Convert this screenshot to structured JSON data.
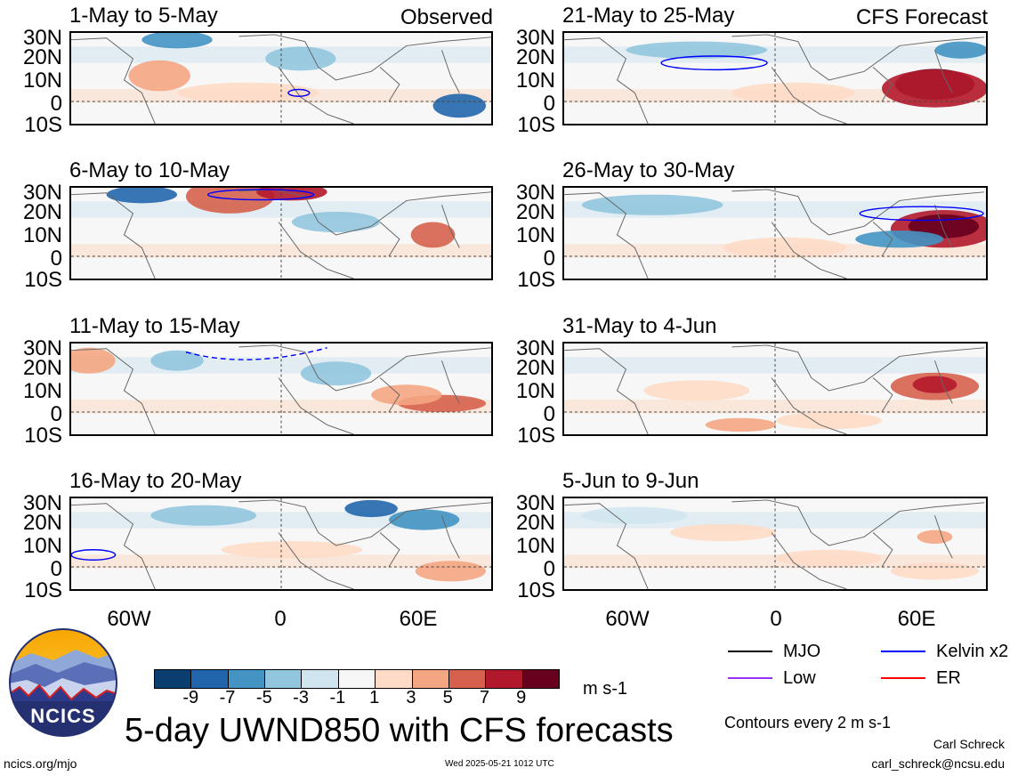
{
  "left_header": "Observed",
  "right_header": "CFS Forecast",
  "lat_labels": [
    "30N",
    "20N",
    "10N",
    "0",
    "10S"
  ],
  "lon_labels": [
    "60W",
    "0",
    "60E"
  ],
  "panels": [
    {
      "title": "1-May to 5-May",
      "col": 0,
      "row": 0
    },
    {
      "title": "6-May to 10-May",
      "col": 0,
      "row": 1
    },
    {
      "title": "11-May to 15-May",
      "col": 0,
      "row": 2
    },
    {
      "title": "16-May to 20-May",
      "col": 0,
      "row": 3
    },
    {
      "title": "21-May to 25-May",
      "col": 1,
      "row": 0
    },
    {
      "title": "26-May to 30-May",
      "col": 1,
      "row": 1
    },
    {
      "title": "31-May to 4-Jun",
      "col": 1,
      "row": 2
    },
    {
      "title": "5-Jun to 9-Jun",
      "col": 1,
      "row": 3
    }
  ],
  "colorbar": {
    "colors": [
      "#0a3e6e",
      "#2166ac",
      "#4393c3",
      "#92c5de",
      "#d1e5f0",
      "#f7f7f7",
      "#fddbc7",
      "#f4a582",
      "#d6604d",
      "#b2182b",
      "#67001f"
    ],
    "ticks": [
      "-9",
      "-7",
      "-5",
      "-3",
      "-1",
      "1",
      "3",
      "5",
      "7",
      "9"
    ],
    "units": "m s-1"
  },
  "legend": [
    {
      "label": "MJO",
      "color": "#000000"
    },
    {
      "label": "Kelvin x2",
      "color": "#0000ff"
    },
    {
      "label": "Low",
      "color": "#9b30ff"
    },
    {
      "label": "ER",
      "color": "#ff0000"
    }
  ],
  "contour_note": "Contours every 2 m s-1",
  "main_title": "5-day UWND850 with CFS forecasts",
  "logo_text": "NCICS",
  "footer_left": "ncics.org/mjo",
  "footer_center": "Wed 2025-05-21 1012 UTC",
  "author_name": "Carl Schreck",
  "author_email": "carl_schreck@ncsu.edu"
}
